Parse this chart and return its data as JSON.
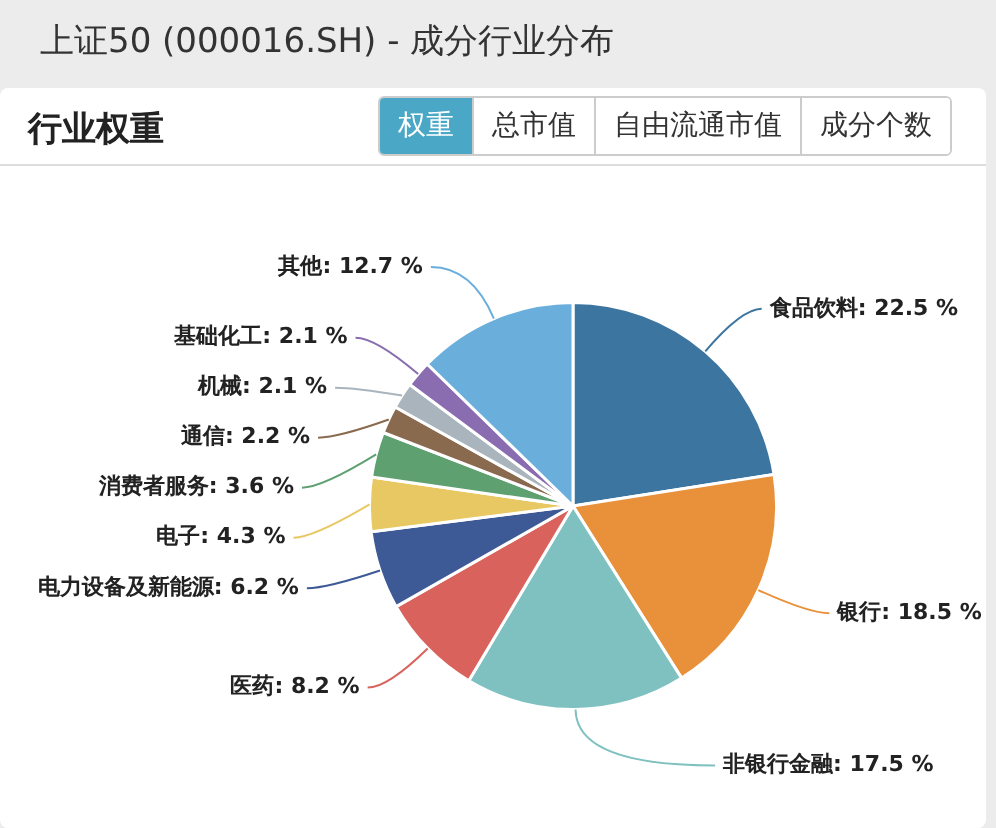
{
  "chart_data": {
    "type": "pie",
    "title": "上证50 (000016.SH) - 成分行业分布",
    "subtitle": "行业权重",
    "annotations": [
      "权重",
      "总市值",
      "自由流通市值",
      "成分个数"
    ],
    "categories": [
      "食品饮料",
      "银行",
      "非银行金融",
      "医药",
      "电力设备及新能源",
      "电子",
      "消费者服务",
      "通信",
      "机械",
      "基础化工",
      "其他"
    ],
    "values": [
      22.5,
      18.5,
      17.5,
      8.2,
      6.2,
      4.3,
      3.6,
      2.2,
      2.1,
      2.1,
      12.7
    ],
    "value_labels": [
      "22.5 %",
      "18.5 %",
      "17.5 %",
      "8.2 %",
      "6.2 %",
      "4.3 %",
      "3.6 %",
      "2.2 %",
      "2.1 %",
      "2.1 %",
      "12.7 %"
    ],
    "colors": [
      "#3b75a0",
      "#e8903a",
      "#7fc1c0",
      "#d9625c",
      "#3e5a96",
      "#e8c862",
      "#5fa071",
      "#8a6a4f",
      "#a9b4bd",
      "#8a6db0",
      "#6aaedc"
    ]
  }
}
